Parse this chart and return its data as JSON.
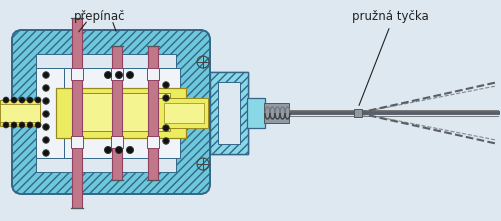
{
  "bg": "#dde8f0",
  "cyan": "#6ec8dc",
  "cyan_light": "#88d8e8",
  "yellow": "#ecec60",
  "yellow_light": "#f4f490",
  "pink": "#c07888",
  "gray": "#909aa4",
  "gray_dark": "#585f6a",
  "white": "#f0f4f8",
  "black": "#222222",
  "lbl1": "přepínač",
  "lbl2": "pružná tyčka"
}
